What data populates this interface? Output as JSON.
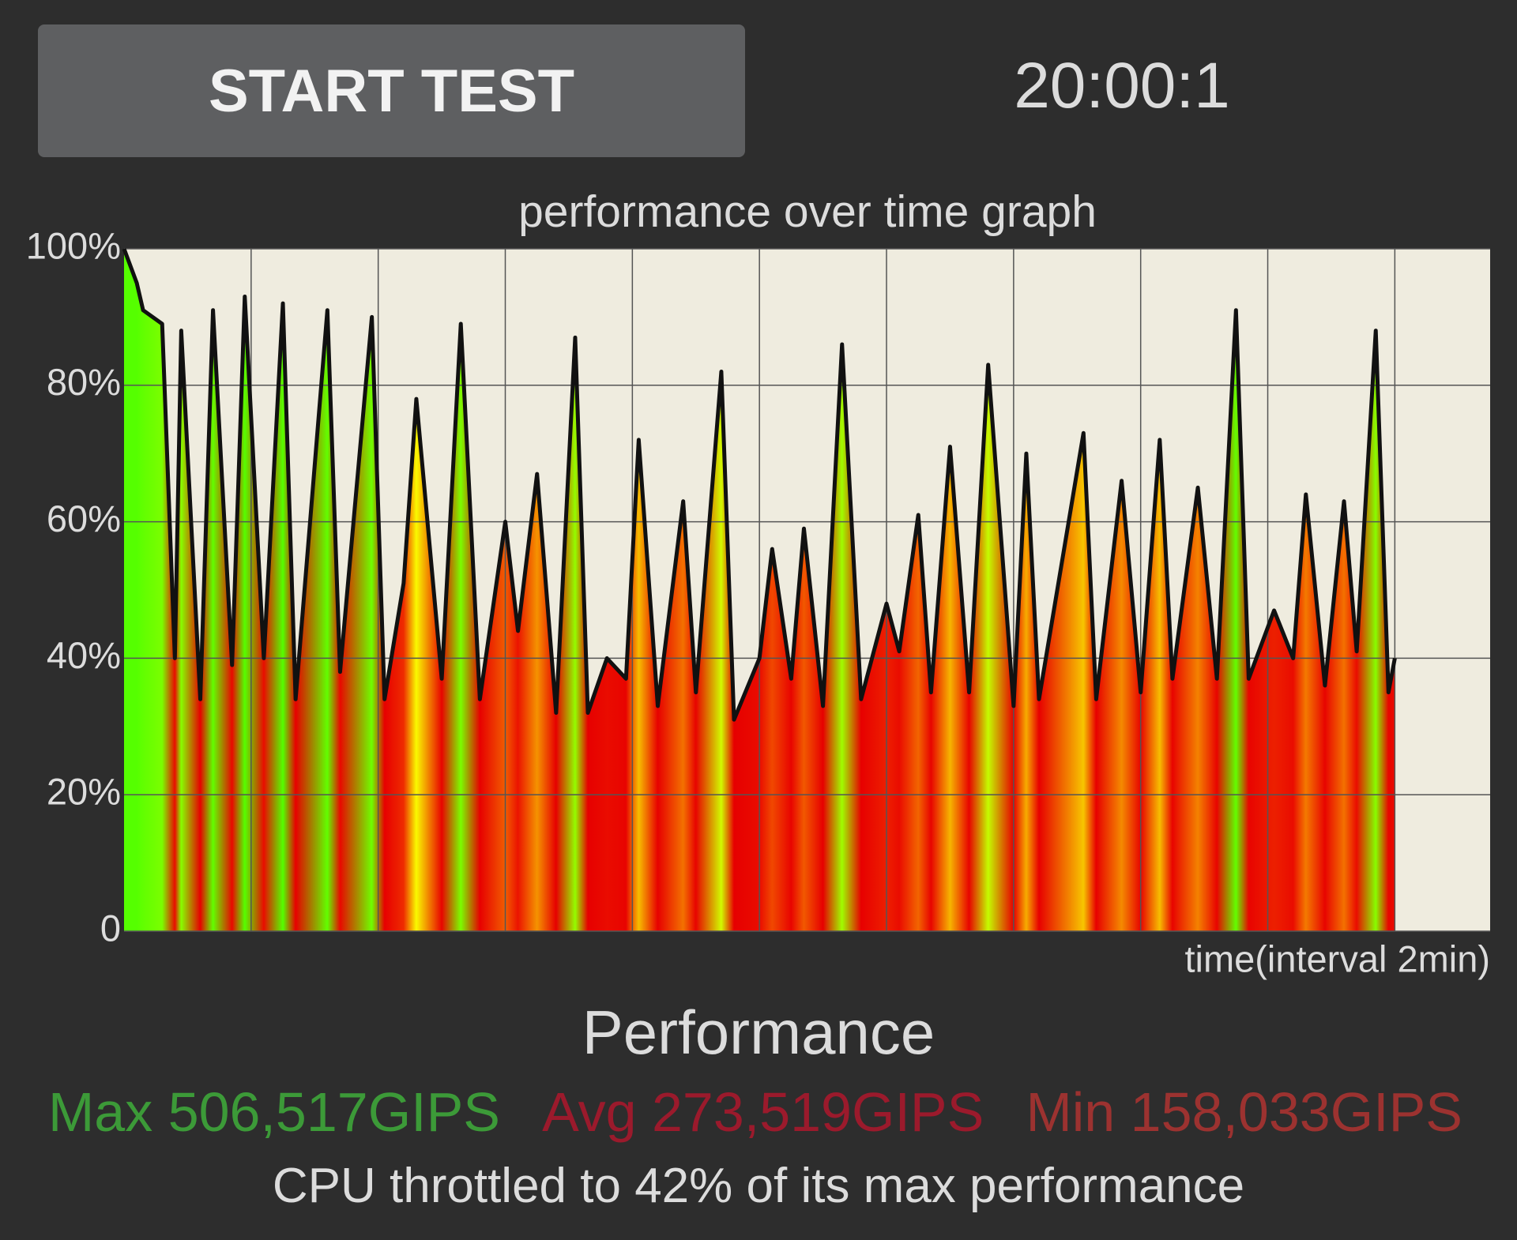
{
  "button": {
    "label": "START TEST"
  },
  "timer": "20:00:1",
  "chart_data": {
    "type": "area",
    "title": "performance over time graph",
    "x_label": "time(interval 2min)",
    "x": [
      0,
      0.2,
      0.3,
      0.6,
      0.8,
      0.9,
      1.2,
      1.4,
      1.7,
      1.9,
      2.2,
      2.5,
      2.7,
      3.2,
      3.4,
      3.9,
      4.1,
      4.4,
      4.6,
      5.0,
      5.3,
      5.6,
      6.0,
      6.2,
      6.5,
      6.8,
      7.1,
      7.3,
      7.6,
      7.9,
      8.1,
      8.4,
      8.8,
      9.0,
      9.4,
      9.6,
      10.0,
      10.2,
      10.5,
      10.7,
      11.0,
      11.3,
      11.6,
      12.0,
      12.2,
      12.5,
      12.7,
      13.0,
      13.3,
      13.6,
      14.0,
      14.2,
      14.4,
      15.1,
      15.3,
      15.7,
      16.0,
      16.3,
      16.5,
      16.9,
      17.2,
      17.5,
      17.7,
      18.1,
      18.4,
      18.6,
      18.9,
      19.2,
      19.4,
      19.7,
      19.9,
      20.0
    ],
    "values": [
      100,
      95,
      91,
      89,
      40,
      88,
      34,
      91,
      39,
      93,
      40,
      92,
      34,
      91,
      38,
      90,
      34,
      51,
      78,
      37,
      89,
      34,
      60,
      44,
      67,
      32,
      87,
      32,
      40,
      37,
      72,
      33,
      63,
      35,
      82,
      31,
      40,
      56,
      37,
      59,
      33,
      86,
      34,
      48,
      41,
      61,
      35,
      71,
      35,
      83,
      33,
      70,
      34,
      73,
      34,
      66,
      35,
      72,
      37,
      65,
      37,
      91,
      37,
      47,
      40,
      64,
      36,
      63,
      41,
      88,
      35,
      40
    ],
    "xlim": [
      0,
      21.5
    ],
    "xticks": [
      2,
      4,
      6,
      8,
      10,
      12,
      14,
      16,
      18,
      20
    ],
    "ylim": [
      0,
      100
    ],
    "yticks": [
      0,
      {
        "value": 20,
        "label": "20%"
      },
      {
        "value": 40,
        "label": "40%"
      },
      {
        "value": 60,
        "label": "60%"
      },
      {
        "value": 80,
        "label": "80%"
      },
      {
        "value": 100,
        "label": "100%"
      }
    ],
    "grid": true,
    "line_color": "#111111",
    "background": "#efecdf"
  },
  "summary": {
    "heading": "Performance",
    "max": "Max 506,517GIPS",
    "avg": "Avg 273,519GIPS",
    "min": "Min 158,033GIPS",
    "note": "CPU throttled to 42% of its max performance"
  }
}
